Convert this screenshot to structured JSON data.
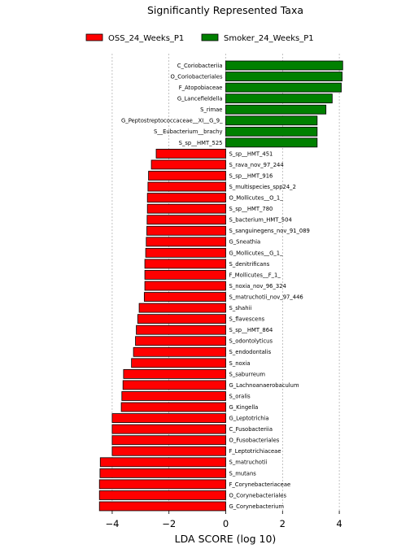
{
  "chart_data": {
    "type": "bar",
    "orientation": "horizontal",
    "title": "Significantly Represented Taxa",
    "xlabel": "LDA SCORE (log 10)",
    "ylabel": "",
    "xlim": [
      -4.8,
      4.8
    ],
    "xticks": [
      -4,
      -2,
      0,
      2,
      4
    ],
    "xtick_labels": [
      "−4",
      "−2",
      "0",
      "2",
      "4"
    ],
    "grid": "vertical dashed",
    "legend_position": "top",
    "series": [
      {
        "name": "OSS_24_Weeks_P1",
        "color": "#ff0000"
      },
      {
        "name": "Smoker_24_Weeks_P1",
        "color": "#008000"
      }
    ],
    "bars": [
      {
        "label": "C_Coriobacteriia",
        "value": 4.12,
        "group": "Smoker_24_Weeks_P1"
      },
      {
        "label": "O_Coriobacteriales",
        "value": 4.1,
        "group": "Smoker_24_Weeks_P1"
      },
      {
        "label": "F_Atopobiaceae",
        "value": 4.07,
        "group": "Smoker_24_Weeks_P1"
      },
      {
        "label": "G_Lancefieldella",
        "value": 3.75,
        "group": "Smoker_24_Weeks_P1"
      },
      {
        "label": "S_rimae",
        "value": 3.53,
        "group": "Smoker_24_Weeks_P1"
      },
      {
        "label": "G_Peptostreptococcaceae__XI__G_9_",
        "value": 3.22,
        "group": "Smoker_24_Weeks_P1"
      },
      {
        "label": "S__Eubacterium__brachy",
        "value": 3.22,
        "group": "Smoker_24_Weeks_P1"
      },
      {
        "label": "S_sp__HMT_525",
        "value": 3.22,
        "group": "Smoker_24_Weeks_P1"
      },
      {
        "label": "S_sp__HMT_451",
        "value": -2.45,
        "group": "OSS_24_Weeks_P1"
      },
      {
        "label": "S_rava_nov_97_244",
        "value": -2.62,
        "group": "OSS_24_Weeks_P1"
      },
      {
        "label": "S_sp__HMT_916",
        "value": -2.72,
        "group": "OSS_24_Weeks_P1"
      },
      {
        "label": "S_multispecies_spp24_2",
        "value": -2.74,
        "group": "OSS_24_Weeks_P1"
      },
      {
        "label": "O_Mollicutes__O_1_",
        "value": -2.76,
        "group": "OSS_24_Weeks_P1"
      },
      {
        "label": "S_sp__HMT_780",
        "value": -2.76,
        "group": "OSS_24_Weeks_P1"
      },
      {
        "label": "S_bacterium_HMT_504",
        "value": -2.77,
        "group": "OSS_24_Weeks_P1"
      },
      {
        "label": "S_sanguinegens_nov_91_089",
        "value": -2.78,
        "group": "OSS_24_Weeks_P1"
      },
      {
        "label": "G_Sneathia",
        "value": -2.8,
        "group": "OSS_24_Weeks_P1"
      },
      {
        "label": "G_Mollicutes__G_1_",
        "value": -2.82,
        "group": "OSS_24_Weeks_P1"
      },
      {
        "label": "S_denitrificans",
        "value": -2.85,
        "group": "OSS_24_Weeks_P1"
      },
      {
        "label": "F_Mollicutes__F_1_",
        "value": -2.85,
        "group": "OSS_24_Weeks_P1"
      },
      {
        "label": "S_noxia_nov_96_324",
        "value": -2.85,
        "group": "OSS_24_Weeks_P1"
      },
      {
        "label": "S_matruchotii_nov_97_446",
        "value": -2.87,
        "group": "OSS_24_Weeks_P1"
      },
      {
        "label": "S_shahii",
        "value": -3.05,
        "group": "OSS_24_Weeks_P1"
      },
      {
        "label": "S_flavescens",
        "value": -3.1,
        "group": "OSS_24_Weeks_P1"
      },
      {
        "label": "S_sp__HMT_864",
        "value": -3.15,
        "group": "OSS_24_Weeks_P1"
      },
      {
        "label": "S_odontolyticus",
        "value": -3.18,
        "group": "OSS_24_Weeks_P1"
      },
      {
        "label": "S_endodontalis",
        "value": -3.25,
        "group": "OSS_24_Weeks_P1"
      },
      {
        "label": "S_noxia",
        "value": -3.32,
        "group": "OSS_24_Weeks_P1"
      },
      {
        "label": "S_saburreum",
        "value": -3.6,
        "group": "OSS_24_Weeks_P1"
      },
      {
        "label": "G_Lachnoanaerobaculum",
        "value": -3.62,
        "group": "OSS_24_Weeks_P1"
      },
      {
        "label": "S_oralis",
        "value": -3.66,
        "group": "OSS_24_Weeks_P1"
      },
      {
        "label": "G_Kingella",
        "value": -3.68,
        "group": "OSS_24_Weeks_P1"
      },
      {
        "label": "G_Leptotrichia",
        "value": -4.0,
        "group": "OSS_24_Weeks_P1"
      },
      {
        "label": "C_Fusobacteriia",
        "value": -4.0,
        "group": "OSS_24_Weeks_P1"
      },
      {
        "label": "O_Fusobacteriales",
        "value": -4.0,
        "group": "OSS_24_Weeks_P1"
      },
      {
        "label": "F_Leptotrichiaceae",
        "value": -4.0,
        "group": "OSS_24_Weeks_P1"
      },
      {
        "label": "S_matruchotii",
        "value": -4.42,
        "group": "OSS_24_Weeks_P1"
      },
      {
        "label": "S_mutans",
        "value": -4.43,
        "group": "OSS_24_Weeks_P1"
      },
      {
        "label": "F_Corynebacteriaceae",
        "value": -4.45,
        "group": "OSS_24_Weeks_P1"
      },
      {
        "label": "O_Corynebacteriales",
        "value": -4.45,
        "group": "OSS_24_Weeks_P1"
      },
      {
        "label": "G_Corynebacterium",
        "value": -4.45,
        "group": "OSS_24_Weeks_P1"
      }
    ]
  }
}
